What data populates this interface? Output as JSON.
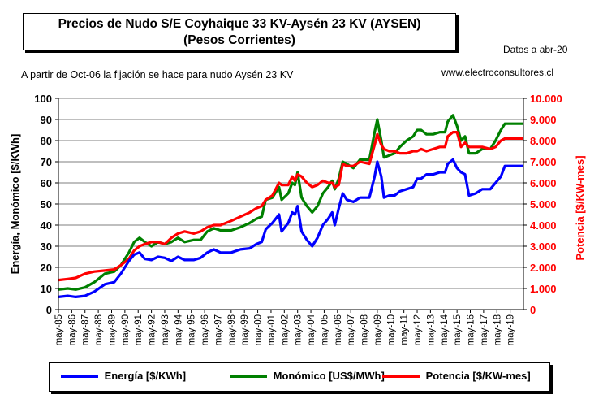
{
  "header": {
    "title_line1": "Precios de Nudo S/E Coyhaique 33 KV-Aysén 23 KV (AYSEN)",
    "title_line2": "(Pesos Corrientes)",
    "date_note": "Datos a abr-20",
    "subtitle_note": "A partir de Oct-06 la fijación se hace para nudo Aysén 23 KV",
    "website": "www.electroconsultores.cl"
  },
  "colors": {
    "energia": "#0000ff",
    "monomico": "#008000",
    "potencia": "#ff0000",
    "right_axis": "#ff0000"
  },
  "chart_data": {
    "type": "line",
    "ylabel_left": "Energía, Monómico  [$/KWh]",
    "ylabel_right": "Potencia  [$/KW-mes]",
    "ylim_left": [
      0,
      100
    ],
    "ylim_right": [
      0,
      10000
    ],
    "yticks_left": [
      "0",
      "10",
      "20",
      "30",
      "40",
      "50",
      "60",
      "70",
      "80",
      "90",
      "100"
    ],
    "yticks_right": [
      "0",
      "1.000",
      "2.000",
      "3.000",
      "4.000",
      "5.000",
      "6.000",
      "7.000",
      "8.000",
      "9.000",
      "10.000"
    ],
    "xticks": [
      "may-85",
      "may-86",
      "may-87",
      "may-88",
      "may-89",
      "may-90",
      "may-91",
      "may-92",
      "may-93",
      "may-94",
      "may-95",
      "may-96",
      "may-97",
      "may-98",
      "may-99",
      "may-00",
      "may-01",
      "may-02",
      "may-03",
      "may-04",
      "may-05",
      "may-06",
      "may-07",
      "may-08",
      "may-09",
      "may-10",
      "may-11",
      "may-12",
      "may-13",
      "may-14",
      "may-15",
      "may-16",
      "may-17",
      "may-18",
      "may-19"
    ],
    "x_range": [
      1985.3,
      2020.3
    ],
    "grid": true,
    "legend_position": "bottom",
    "series": [
      {
        "name": "Energía [$/KWh]",
        "axis": "left",
        "points": [
          [
            1985.3,
            6
          ],
          [
            1986,
            6.5
          ],
          [
            1986.6,
            6
          ],
          [
            1987.3,
            6.5
          ],
          [
            1988,
            8.5
          ],
          [
            1988.8,
            12
          ],
          [
            1989.5,
            13
          ],
          [
            1990,
            17
          ],
          [
            1990.6,
            23
          ],
          [
            1991,
            26
          ],
          [
            1991.4,
            27
          ],
          [
            1991.8,
            24
          ],
          [
            1992.3,
            23.5
          ],
          [
            1992.8,
            25
          ],
          [
            1993.3,
            24.5
          ],
          [
            1993.8,
            23
          ],
          [
            1994.3,
            25
          ],
          [
            1994.8,
            23.5
          ],
          [
            1995.5,
            23.5
          ],
          [
            1996,
            24.5
          ],
          [
            1996.5,
            27
          ],
          [
            1997,
            28.5
          ],
          [
            1997.5,
            27
          ],
          [
            1998.3,
            27
          ],
          [
            1999,
            28.5
          ],
          [
            1999.7,
            29
          ],
          [
            2000.2,
            31
          ],
          [
            2000.6,
            32
          ],
          [
            2000.9,
            38
          ],
          [
            2001.4,
            41
          ],
          [
            2001.9,
            45
          ],
          [
            2002.1,
            37
          ],
          [
            2002.6,
            41
          ],
          [
            2002.9,
            46
          ],
          [
            2003.1,
            45
          ],
          [
            2003.3,
            49
          ],
          [
            2003.6,
            37
          ],
          [
            2004,
            33
          ],
          [
            2004.4,
            30
          ],
          [
            2004.8,
            34
          ],
          [
            2005.2,
            40
          ],
          [
            2005.6,
            43
          ],
          [
            2005.9,
            46
          ],
          [
            2006.1,
            40
          ],
          [
            2006.4,
            48
          ],
          [
            2006.7,
            55
          ],
          [
            2007,
            52
          ],
          [
            2007.5,
            51
          ],
          [
            2008,
            53
          ],
          [
            2008.7,
            53
          ],
          [
            2009.1,
            63
          ],
          [
            2009.3,
            70
          ],
          [
            2009.6,
            63
          ],
          [
            2009.8,
            53
          ],
          [
            2010.2,
            54
          ],
          [
            2010.6,
            54
          ],
          [
            2011,
            56
          ],
          [
            2011.5,
            57
          ],
          [
            2012,
            58
          ],
          [
            2012.3,
            62
          ],
          [
            2012.6,
            62
          ],
          [
            2013,
            64
          ],
          [
            2013.5,
            64
          ],
          [
            2014,
            65
          ],
          [
            2014.4,
            65
          ],
          [
            2014.6,
            69
          ],
          [
            2015,
            71
          ],
          [
            2015.3,
            67
          ],
          [
            2015.6,
            65
          ],
          [
            2015.9,
            64
          ],
          [
            2016.2,
            54
          ],
          [
            2016.7,
            55
          ],
          [
            2017.2,
            57
          ],
          [
            2017.8,
            57
          ],
          [
            2018.2,
            60
          ],
          [
            2018.6,
            63
          ],
          [
            2018.9,
            68
          ],
          [
            2020.3,
            68
          ]
        ]
      },
      {
        "name": "Monómico [US$/MWh]",
        "axis": "left",
        "points": [
          [
            1985.3,
            9.5
          ],
          [
            1986,
            10
          ],
          [
            1986.6,
            9.5
          ],
          [
            1987.3,
            10.5
          ],
          [
            1988,
            13
          ],
          [
            1988.8,
            17
          ],
          [
            1989.5,
            18
          ],
          [
            1990,
            21
          ],
          [
            1990.6,
            27
          ],
          [
            1991,
            32
          ],
          [
            1991.4,
            34
          ],
          [
            1991.8,
            32
          ],
          [
            1992.3,
            30
          ],
          [
            1992.8,
            32
          ],
          [
            1993.3,
            31
          ],
          [
            1993.8,
            32
          ],
          [
            1994.3,
            34
          ],
          [
            1994.8,
            32
          ],
          [
            1995.5,
            33
          ],
          [
            1996,
            33
          ],
          [
            1996.5,
            37
          ],
          [
            1997,
            38.5
          ],
          [
            1997.5,
            37.5
          ],
          [
            1998.3,
            37.5
          ],
          [
            1999,
            39
          ],
          [
            1999.7,
            41
          ],
          [
            2000.2,
            43
          ],
          [
            2000.6,
            44
          ],
          [
            2000.9,
            52
          ],
          [
            2001.4,
            53
          ],
          [
            2001.9,
            58
          ],
          [
            2002.1,
            52
          ],
          [
            2002.6,
            55
          ],
          [
            2002.9,
            60
          ],
          [
            2003.1,
            59
          ],
          [
            2003.3,
            65
          ],
          [
            2003.6,
            53
          ],
          [
            2004,
            49
          ],
          [
            2004.4,
            46
          ],
          [
            2004.8,
            49
          ],
          [
            2005.2,
            55
          ],
          [
            2005.6,
            58
          ],
          [
            2005.9,
            61
          ],
          [
            2006.1,
            57
          ],
          [
            2006.4,
            62
          ],
          [
            2006.7,
            70
          ],
          [
            2007,
            69
          ],
          [
            2007.5,
            67
          ],
          [
            2008,
            71
          ],
          [
            2008.7,
            71
          ],
          [
            2009.1,
            84
          ],
          [
            2009.3,
            90
          ],
          [
            2009.6,
            80
          ],
          [
            2009.8,
            72
          ],
          [
            2010.2,
            73
          ],
          [
            2010.6,
            74
          ],
          [
            2011,
            77
          ],
          [
            2011.5,
            80
          ],
          [
            2012,
            82
          ],
          [
            2012.3,
            85
          ],
          [
            2012.6,
            85
          ],
          [
            2013,
            83
          ],
          [
            2013.5,
            83
          ],
          [
            2014,
            84
          ],
          [
            2014.4,
            84
          ],
          [
            2014.6,
            89
          ],
          [
            2015,
            92
          ],
          [
            2015.3,
            87
          ],
          [
            2015.6,
            80
          ],
          [
            2015.9,
            82
          ],
          [
            2016.2,
            74
          ],
          [
            2016.7,
            74
          ],
          [
            2017.2,
            76
          ],
          [
            2017.8,
            76
          ],
          [
            2018.2,
            80
          ],
          [
            2018.6,
            85
          ],
          [
            2018.9,
            88
          ],
          [
            2020.3,
            88
          ]
        ]
      },
      {
        "name": "Potencia [$/KW-mes]",
        "axis": "right",
        "points": [
          [
            1985.3,
            1400
          ],
          [
            1986,
            1450
          ],
          [
            1986.6,
            1500
          ],
          [
            1987.3,
            1700
          ],
          [
            1988,
            1800
          ],
          [
            1988.8,
            1850
          ],
          [
            1989.5,
            1900
          ],
          [
            1990,
            2100
          ],
          [
            1990.6,
            2400
          ],
          [
            1991,
            2800
          ],
          [
            1991.4,
            3000
          ],
          [
            1991.8,
            3100
          ],
          [
            1992.3,
            3200
          ],
          [
            1992.8,
            3200
          ],
          [
            1993.3,
            3100
          ],
          [
            1993.8,
            3400
          ],
          [
            1994.3,
            3600
          ],
          [
            1994.8,
            3700
          ],
          [
            1995.5,
            3600
          ],
          [
            1996,
            3700
          ],
          [
            1996.5,
            3900
          ],
          [
            1997,
            4000
          ],
          [
            1997.5,
            4000
          ],
          [
            1998.3,
            4200
          ],
          [
            1999,
            4400
          ],
          [
            1999.7,
            4600
          ],
          [
            2000.2,
            4800
          ],
          [
            2000.6,
            4900
          ],
          [
            2000.9,
            5200
          ],
          [
            2001.4,
            5400
          ],
          [
            2001.9,
            6000
          ],
          [
            2002.1,
            5900
          ],
          [
            2002.6,
            5900
          ],
          [
            2002.9,
            6300
          ],
          [
            2003.1,
            6100
          ],
          [
            2003.3,
            6400
          ],
          [
            2003.6,
            6300
          ],
          [
            2004,
            6000
          ],
          [
            2004.4,
            5800
          ],
          [
            2004.8,
            5900
          ],
          [
            2005.2,
            6100
          ],
          [
            2005.6,
            6000
          ],
          [
            2005.9,
            6000
          ],
          [
            2006.1,
            5800
          ],
          [
            2006.4,
            5900
          ],
          [
            2006.7,
            6900
          ],
          [
            2007,
            6800
          ],
          [
            2007.5,
            6800
          ],
          [
            2008,
            7000
          ],
          [
            2008.7,
            6900
          ],
          [
            2009.1,
            7800
          ],
          [
            2009.3,
            8300
          ],
          [
            2009.6,
            7800
          ],
          [
            2009.8,
            7600
          ],
          [
            2010.2,
            7500
          ],
          [
            2010.6,
            7500
          ],
          [
            2011,
            7400
          ],
          [
            2011.5,
            7400
          ],
          [
            2012,
            7500
          ],
          [
            2012.3,
            7500
          ],
          [
            2012.6,
            7600
          ],
          [
            2013,
            7500
          ],
          [
            2013.5,
            7600
          ],
          [
            2014,
            7700
          ],
          [
            2014.4,
            7700
          ],
          [
            2014.6,
            8200
          ],
          [
            2015,
            8400
          ],
          [
            2015.3,
            8400
          ],
          [
            2015.6,
            7700
          ],
          [
            2015.9,
            7900
          ],
          [
            2016.2,
            7700
          ],
          [
            2016.7,
            7700
          ],
          [
            2017.2,
            7700
          ],
          [
            2017.8,
            7600
          ],
          [
            2018.2,
            7700
          ],
          [
            2018.6,
            8000
          ],
          [
            2018.9,
            8100
          ],
          [
            2020.3,
            8100
          ]
        ]
      }
    ]
  }
}
